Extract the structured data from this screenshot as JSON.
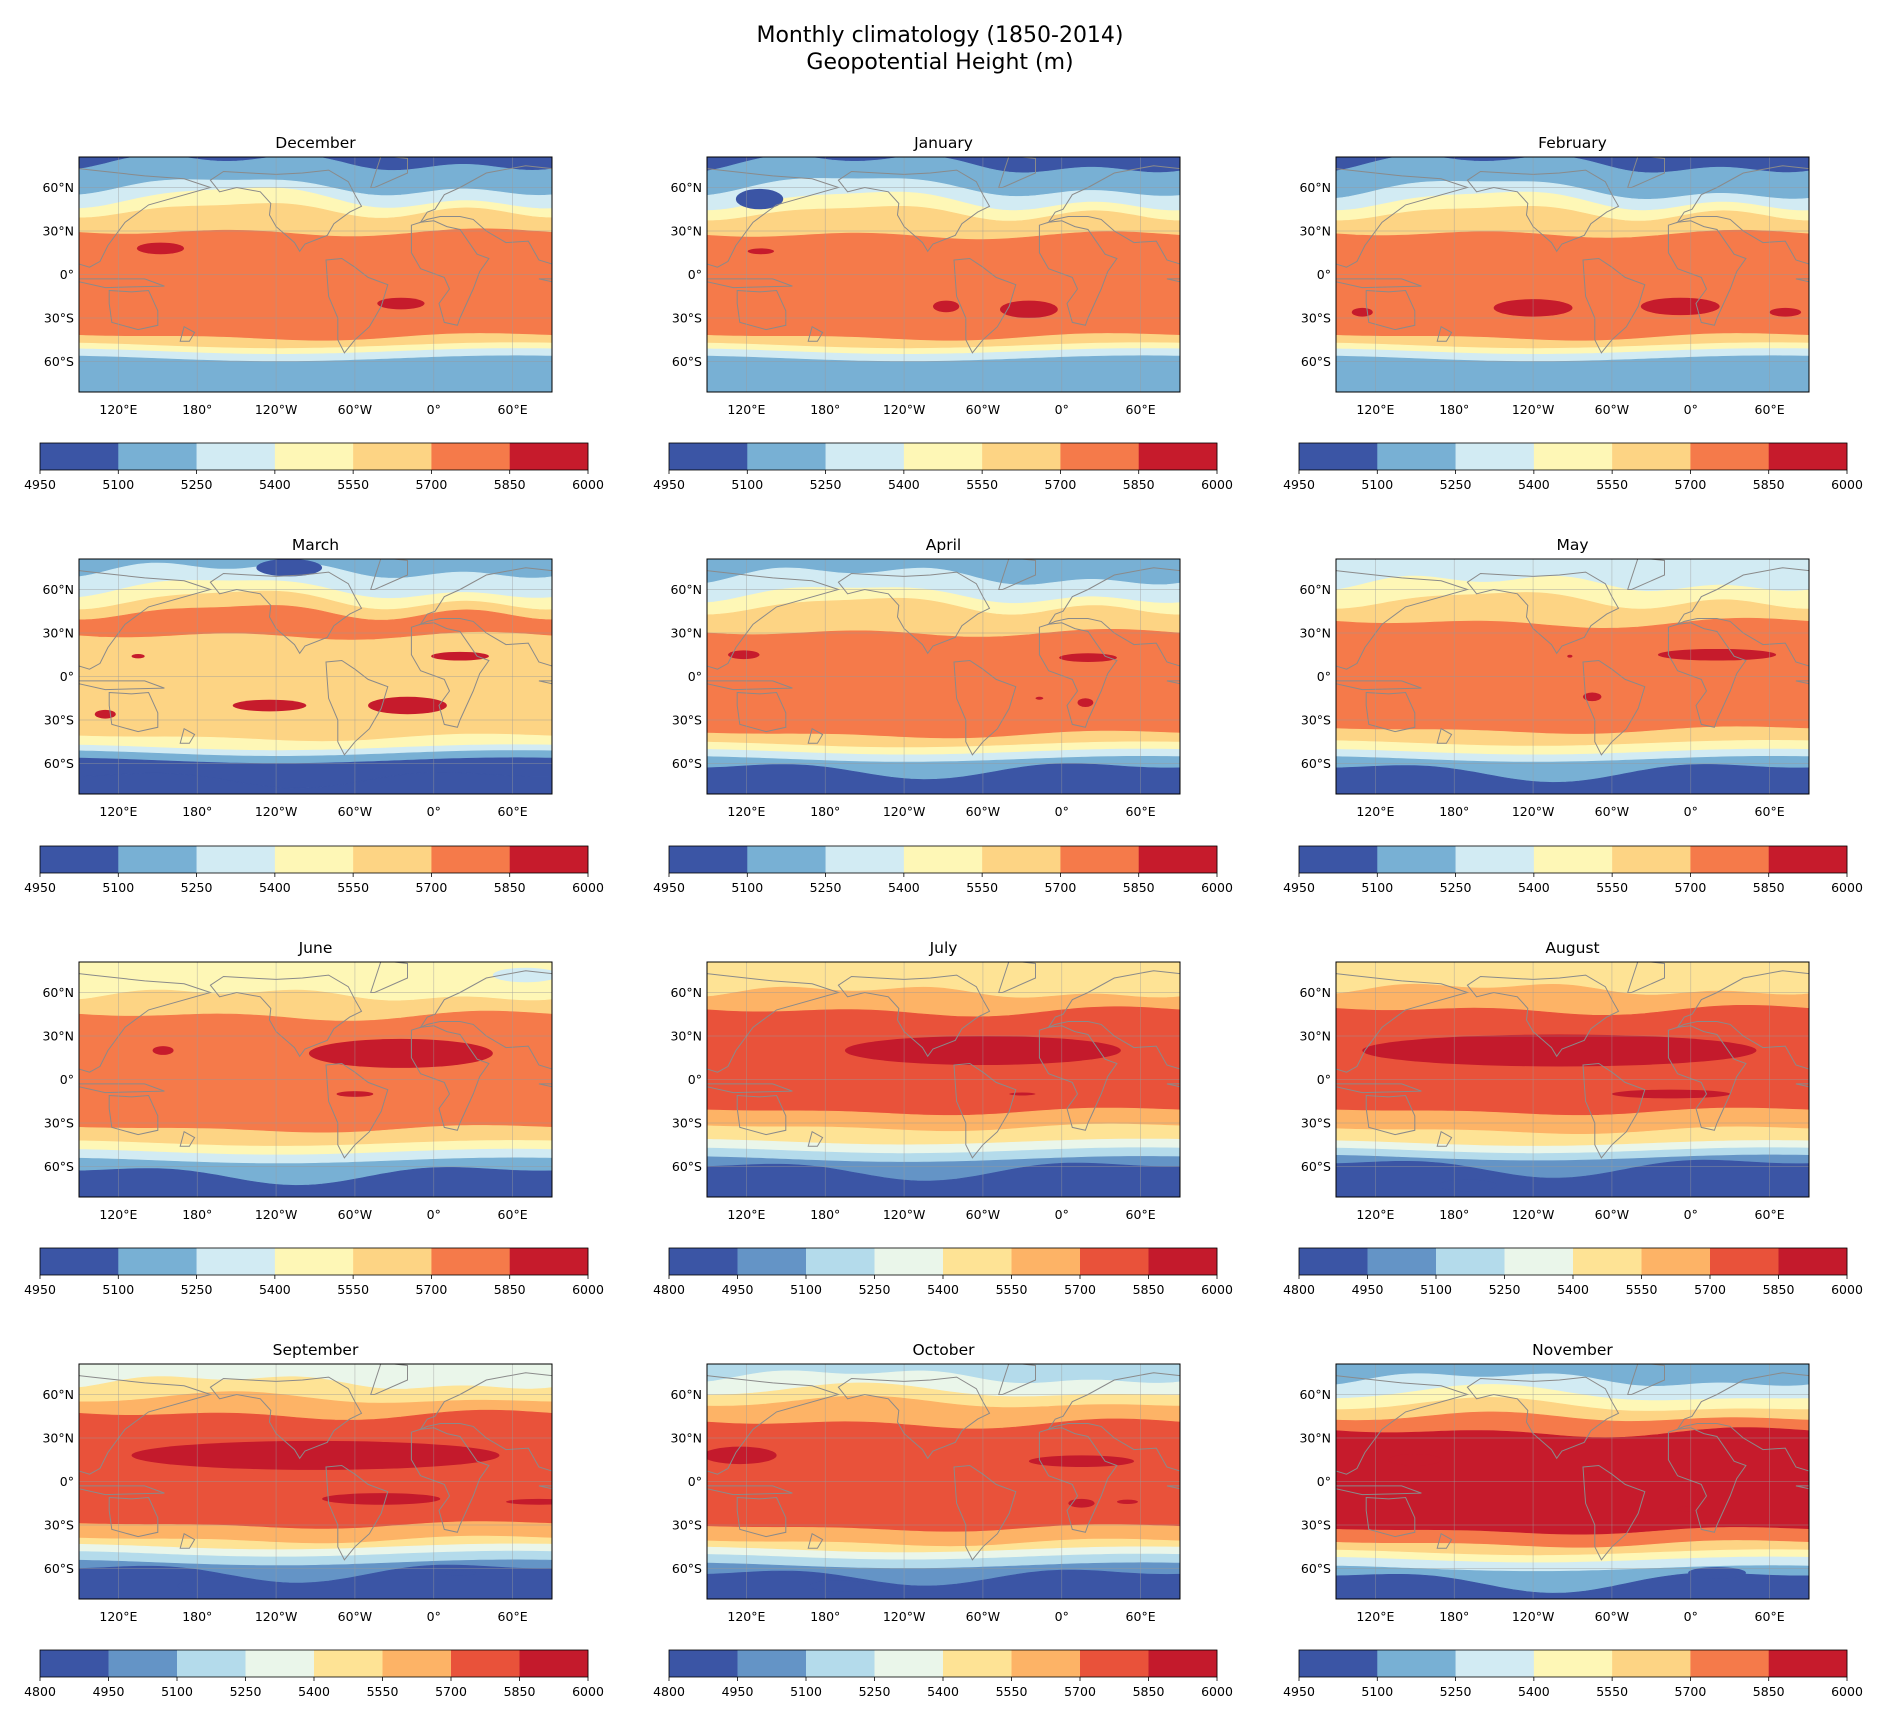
{
  "figure": {
    "title_line1": "Monthly climatology (1850-2014)",
    "title_line2": "Geopotential Height (m)"
  },
  "map_axes": {
    "lat_ticks": [
      "60°N",
      "30°N",
      "0°",
      "30°S",
      "60°S"
    ],
    "lon_ticks": [
      "120°E",
      "180°",
      "120°W",
      "60°W",
      "0°",
      "60°E"
    ]
  },
  "palettes": {
    "seven": [
      "#3b55a5",
      "#78b0d4",
      "#d2ebf3",
      "#fef7b6",
      "#fdd484",
      "#f57a4a",
      "#c61b2c"
    ],
    "eight": [
      "#3b55a5",
      "#6494c6",
      "#b4dbeb",
      "#eaf6ea",
      "#fee395",
      "#fdb366",
      "#e9523a",
      "#c41a2c"
    ]
  },
  "chart_data": [
    {
      "type": "heatmap",
      "month": "December",
      "bounds": [
        4950,
        5100,
        5250,
        5400,
        5550,
        5700,
        5850,
        6000
      ],
      "bounds_labels": [
        "4950",
        "5100",
        "5250",
        "5400",
        "5550",
        "5700",
        "5850",
        "6000"
      ],
      "palette": "seven"
    },
    {
      "type": "heatmap",
      "month": "January",
      "bounds": [
        4950,
        5100,
        5250,
        5400,
        5550,
        5700,
        5850,
        6000
      ],
      "bounds_labels": [
        "4950",
        "5100",
        "5250",
        "5400",
        "5550",
        "5700",
        "5850",
        "6000"
      ],
      "palette": "seven"
    },
    {
      "type": "heatmap",
      "month": "February",
      "bounds": [
        4950,
        5100,
        5250,
        5400,
        5550,
        5700,
        5850,
        6000
      ],
      "bounds_labels": [
        "4950",
        "5100",
        "5250",
        "5400",
        "5550",
        "5700",
        "5850",
        "6000"
      ],
      "palette": "seven"
    },
    {
      "type": "heatmap",
      "month": "March",
      "bounds": [
        4950,
        5100,
        5250,
        5400,
        5550,
        5700,
        5850,
        6000
      ],
      "bounds_labels": [
        "4950",
        "5100",
        "5250",
        "5400",
        "5550",
        "5700",
        "5850",
        "6000"
      ],
      "palette": "seven"
    },
    {
      "type": "heatmap",
      "month": "April",
      "bounds": [
        4950,
        5100,
        5250,
        5400,
        5550,
        5700,
        5850,
        6000
      ],
      "bounds_labels": [
        "4950",
        "5100",
        "5250",
        "5400",
        "5550",
        "5700",
        "5850",
        "6000"
      ],
      "palette": "seven"
    },
    {
      "type": "heatmap",
      "month": "May",
      "bounds": [
        4950,
        5100,
        5250,
        5400,
        5550,
        5700,
        5850,
        6000
      ],
      "bounds_labels": [
        "4950",
        "5100",
        "5250",
        "5400",
        "5550",
        "5700",
        "5850",
        "6000"
      ],
      "palette": "seven"
    },
    {
      "type": "heatmap",
      "month": "June",
      "bounds": [
        4950,
        5100,
        5250,
        5400,
        5550,
        5700,
        5850,
        6000
      ],
      "bounds_labels": [
        "4950",
        "5100",
        "5250",
        "5400",
        "5550",
        "5700",
        "5850",
        "6000"
      ],
      "palette": "seven"
    },
    {
      "type": "heatmap",
      "month": "July",
      "bounds": [
        4800,
        4950,
        5100,
        5250,
        5400,
        5550,
        5700,
        5850,
        6000
      ],
      "bounds_labels": [
        "4800",
        "4950",
        "5100",
        "5250",
        "5400",
        "5550",
        "5700",
        "5850",
        "6000"
      ],
      "palette": "eight"
    },
    {
      "type": "heatmap",
      "month": "August",
      "bounds": [
        4800,
        4950,
        5100,
        5250,
        5400,
        5550,
        5700,
        5850,
        6000
      ],
      "bounds_labels": [
        "4800",
        "4950",
        "5100",
        "5250",
        "5400",
        "5550",
        "5700",
        "5850",
        "6000"
      ],
      "palette": "eight"
    },
    {
      "type": "heatmap",
      "month": "September",
      "bounds": [
        4800,
        4950,
        5100,
        5250,
        5400,
        5550,
        5700,
        5850,
        6000
      ],
      "bounds_labels": [
        "4800",
        "4950",
        "5100",
        "5250",
        "5400",
        "5550",
        "5700",
        "5850",
        "6000"
      ],
      "palette": "eight"
    },
    {
      "type": "heatmap",
      "month": "October",
      "bounds": [
        4800,
        4950,
        5100,
        5250,
        5400,
        5550,
        5700,
        5850,
        6000
      ],
      "bounds_labels": [
        "4800",
        "4950",
        "5100",
        "5250",
        "5400",
        "5550",
        "5700",
        "5850",
        "6000"
      ],
      "palette": "eight"
    },
    {
      "type": "heatmap",
      "month": "November",
      "bounds": [
        4950,
        5100,
        5250,
        5400,
        5550,
        5700,
        5850,
        6000
      ],
      "bounds_labels": [
        "4950",
        "5100",
        "5250",
        "5400",
        "5550",
        "5700",
        "5850",
        "6000"
      ],
      "palette": "seven"
    }
  ]
}
